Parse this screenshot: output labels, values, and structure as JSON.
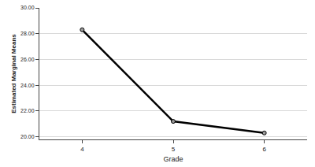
{
  "chart_data": {
    "type": "line",
    "x_label": "Grade",
    "y_label": "Estimated Marginal Means",
    "categories": [
      "4",
      "5",
      "6"
    ],
    "values": [
      28.3,
      21.2,
      20.3
    ],
    "color": "#000000",
    "marker": "circle",
    "ylim": [
      19.8,
      30.0
    ],
    "yticks": [
      {
        "value": 20,
        "label": "20.00"
      },
      {
        "value": 22,
        "label": "22.00"
      },
      {
        "value": 24,
        "label": "24.00"
      },
      {
        "value": 26,
        "label": "26.00"
      },
      {
        "value": 28,
        "label": "28.00"
      },
      {
        "value": 30,
        "label": "30.00"
      }
    ],
    "grid": true
  }
}
